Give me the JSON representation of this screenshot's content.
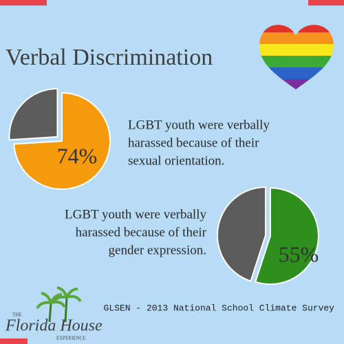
{
  "title": "Verbal Discrimination",
  "source": "GLSEN - 2013 National School Climate Survey",
  "logo": {
    "top": "THE",
    "name": "Florida House",
    "sub": "EXPERIENCE"
  },
  "chart_data": [
    {
      "type": "pie",
      "values": [
        74,
        26
      ],
      "value_labels": [
        "74%",
        null
      ],
      "colors": [
        "#f59a0c",
        "#5c5c5c"
      ],
      "caption": [
        "LGBT youth were verbally",
        "harassed because of their",
        "sexual orientation."
      ]
    },
    {
      "type": "pie",
      "values": [
        55,
        45
      ],
      "value_labels": [
        "55%",
        null
      ],
      "colors": [
        "#2f8f1e",
        "#5c5c5c"
      ],
      "caption": [
        "LGBT youth were verbally",
        "harassed because of their",
        "gender expression."
      ]
    }
  ]
}
